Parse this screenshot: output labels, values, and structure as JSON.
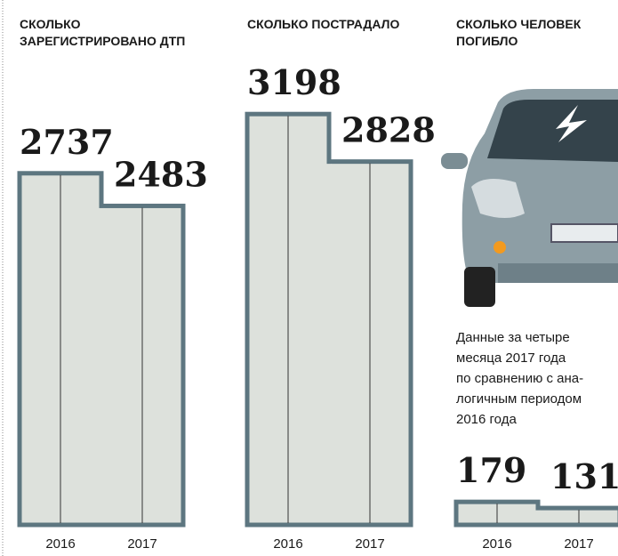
{
  "chart_data": [
    {
      "type": "bar",
      "title": [
        "СКОЛЬКО",
        "ЗАРЕГИСТРИРОВАНО ДТП"
      ],
      "categories": [
        "2016",
        "2017"
      ],
      "values": [
        2737,
        2483
      ],
      "color": "#dde1dc"
    },
    {
      "type": "bar",
      "title": [
        "СКОЛЬКО ПОСТРАДАЛО"
      ],
      "categories": [
        "2016",
        "2017"
      ],
      "values": [
        3198,
        2828
      ],
      "color": "#dde1dc"
    },
    {
      "type": "bar",
      "title": [
        "СКОЛЬКО ЧЕЛОВЕК",
        "ПОГИБЛО"
      ],
      "categories": [
        "2016",
        "2017"
      ],
      "values": [
        179,
        131
      ],
      "color": "#dde1dc",
      "annotation": [
        "Данные за четыре",
        "месяца 2017 года",
        "по сравнению с ана-",
        "логичным периодом",
        "2016 года"
      ]
    }
  ]
}
